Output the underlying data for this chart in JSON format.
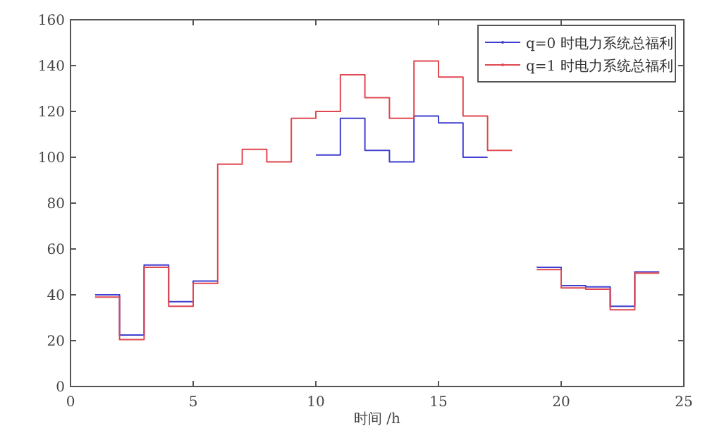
{
  "chart_data": {
    "type": "step",
    "xlabel": "时间 /h",
    "x": [
      1,
      2,
      3,
      4,
      5,
      6,
      7,
      8,
      9,
      10,
      11,
      12,
      13,
      14,
      15,
      16,
      17,
      18,
      19,
      20,
      21,
      22,
      23,
      24
    ],
    "series": [
      {
        "name": "q=0 时电力系统总福利",
        "color": "#4040d0",
        "values": [
          40,
          22.5,
          53,
          37,
          46,
          null,
          null,
          null,
          null,
          101,
          117,
          103,
          98,
          118,
          115,
          100,
          null,
          null,
          52,
          44,
          43.5,
          35,
          50,
          50
        ]
      },
      {
        "name": "q=1 时电力系统总福利",
        "color": "#e04850",
        "values": [
          39,
          20.5,
          52,
          35,
          45,
          97,
          103.5,
          98,
          117,
          120,
          136,
          126,
          117,
          142,
          135,
          118,
          103,
          null,
          51,
          43,
          42.5,
          33.5,
          49.5,
          49.5
        ]
      }
    ],
    "xlim": [
      0,
      25
    ],
    "ylim": [
      0,
      160
    ],
    "xticks": [
      0,
      5,
      10,
      15,
      20,
      25
    ],
    "yticks": [
      0,
      20,
      40,
      60,
      80,
      100,
      120,
      140,
      160
    ],
    "grid": false,
    "legend": "top right"
  }
}
